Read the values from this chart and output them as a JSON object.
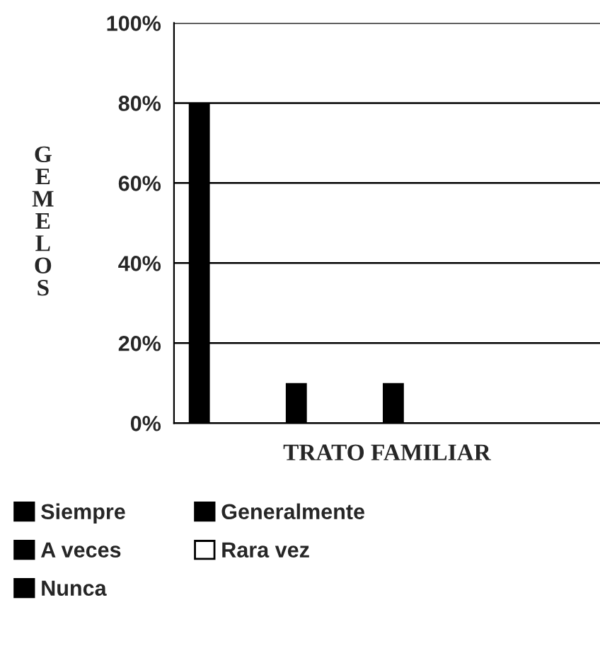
{
  "chart_data": {
    "type": "bar",
    "xlabel": "TRATO FAMILIAR",
    "ylabel": "GEMELOS",
    "categories": [
      null
    ],
    "series": [
      {
        "name": "Siempre",
        "color": "#000000",
        "values": [
          80
        ]
      },
      {
        "name": "Generalmente",
        "color": "#000000",
        "values": [
          0
        ]
      },
      {
        "name": "A veces",
        "color": "#000000",
        "values": [
          10
        ]
      },
      {
        "name": "Rara vez",
        "color": "#ffffff",
        "values": [
          0
        ]
      },
      {
        "name": "Nunca",
        "color": "#000000",
        "values": [
          10
        ]
      }
    ],
    "ylim": [
      0,
      100
    ],
    "yticks": [
      {
        "value": 0,
        "label": "0%"
      },
      {
        "value": 20,
        "label": "20%"
      },
      {
        "value": 40,
        "label": "40%"
      },
      {
        "value": 60,
        "label": "60%"
      },
      {
        "value": 80,
        "label": "80%"
      },
      {
        "value": 100,
        "label": "100%"
      }
    ],
    "grid": "y",
    "legend": "bottom"
  }
}
